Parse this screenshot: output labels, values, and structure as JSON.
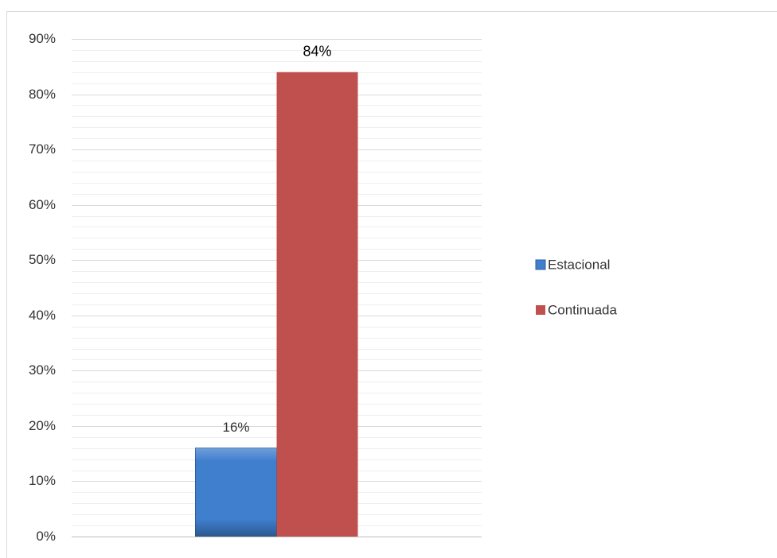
{
  "chart_data": {
    "type": "bar",
    "categories": [
      null
    ],
    "series": [
      {
        "name": "Estacional",
        "color": "#3f7fce",
        "values": [
          16
        ],
        "value_labels": [
          "16%"
        ]
      },
      {
        "name": "Continuada",
        "color": "#c0504d",
        "values": [
          84
        ],
        "value_labels": [
          "84%"
        ]
      }
    ],
    "ylim": [
      0,
      90
    ],
    "yticks": [
      {
        "value": 0,
        "label": "0%"
      },
      {
        "value": 10,
        "label": "10%"
      },
      {
        "value": 20,
        "label": "20%"
      },
      {
        "value": 30,
        "label": "30%"
      },
      {
        "value": 40,
        "label": "40%"
      },
      {
        "value": 50,
        "label": "50%"
      },
      {
        "value": 60,
        "label": "60%"
      },
      {
        "value": 70,
        "label": "70%"
      },
      {
        "value": 80,
        "label": "80%"
      },
      {
        "value": 90,
        "label": "90%"
      }
    ],
    "minor_yticks": [
      2,
      4,
      6,
      8,
      12,
      14,
      16,
      18,
      22,
      24,
      26,
      28,
      32,
      34,
      36,
      38,
      42,
      44,
      46,
      48,
      52,
      54,
      56,
      58,
      62,
      64,
      66,
      68,
      72,
      74,
      76,
      78,
      82,
      84,
      86,
      88
    ],
    "grid": true,
    "legend": "right"
  }
}
